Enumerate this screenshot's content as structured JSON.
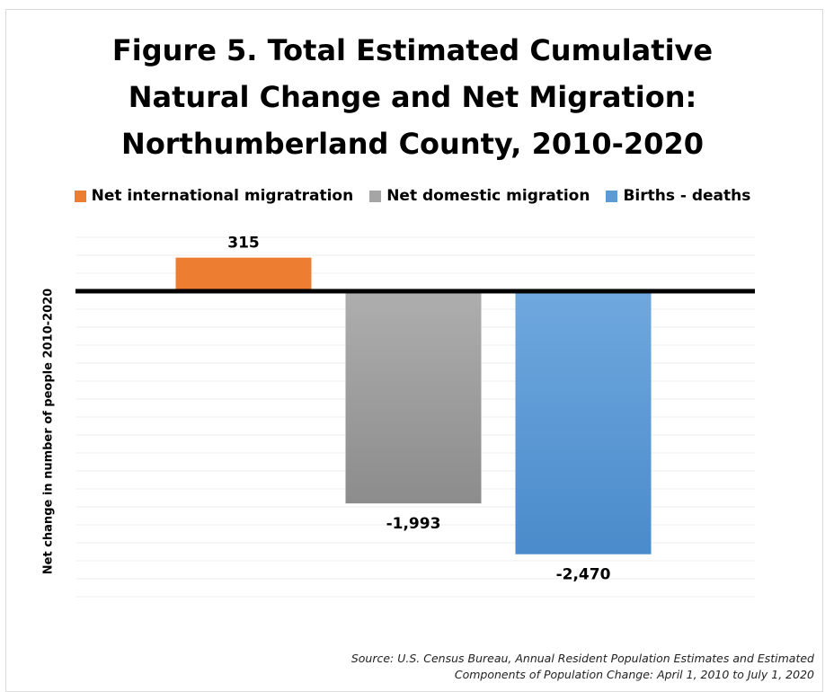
{
  "chart_data": {
    "type": "bar",
    "title_lines": [
      "Figure 5. Total Estimated Cumulative",
      "Natural Change and Net Migration:",
      "Northumberland County, 2010-2020"
    ],
    "categories": [
      "Net international migratration",
      "Net domestic migration",
      "Births  - deaths"
    ],
    "values": [
      315,
      -1993,
      -2470
    ],
    "data_labels": [
      "315",
      "-1,993",
      "-2,470"
    ],
    "colors": [
      "#ED7D31",
      "#A5A5A5",
      "#5B9BD5"
    ],
    "ylabel": "Net change in number of people 2010-2020",
    "ylim": [
      -3000,
      500
    ],
    "grid": true,
    "legend_position": "top",
    "source_lines": [
      "Source: U.S. Census Bureau, Annual Resident Population Estimates and Estimated",
      "Components of Population Change: April 1, 2010 to July 1, 2020"
    ]
  }
}
